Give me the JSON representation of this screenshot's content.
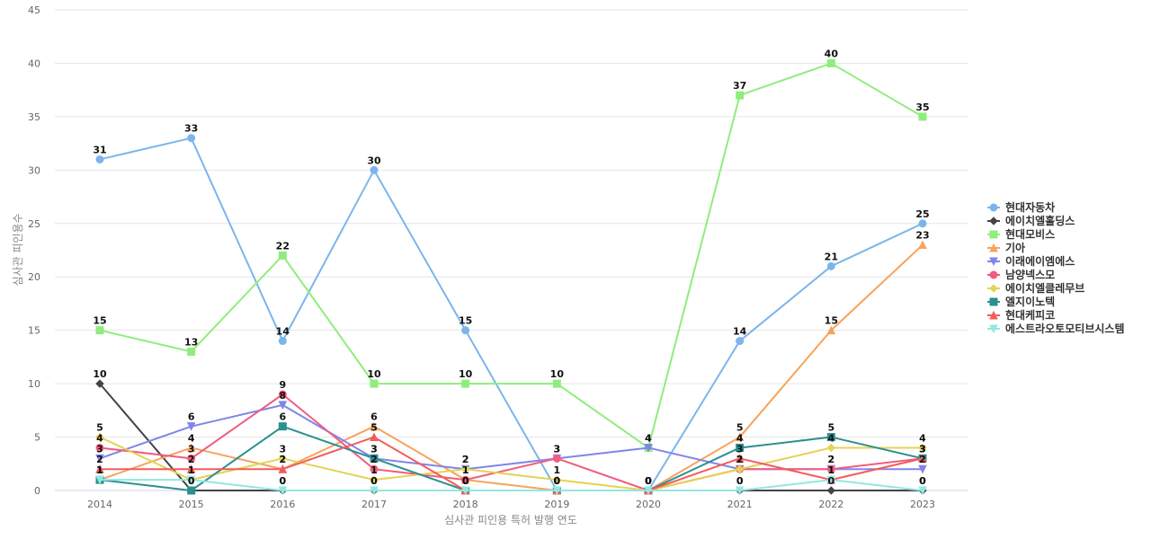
{
  "chart_data": {
    "type": "line",
    "xlabel": "심사관 피인용 특허 발행 연도",
    "ylabel": "심사관 피인용수",
    "ylim": [
      0,
      45
    ],
    "yticks": [
      0,
      5,
      10,
      15,
      20,
      25,
      30,
      35,
      40,
      45
    ],
    "x": [
      "2014",
      "2015",
      "2016",
      "2017",
      "2018",
      "2019",
      "2020",
      "2021",
      "2022",
      "2023"
    ],
    "grid": true,
    "legend_position": "right",
    "series": [
      {
        "name": "현대자동차",
        "values": [
          31,
          33,
          14,
          30,
          15,
          0,
          0,
          14,
          21,
          25
        ],
        "color": "#7cb5ec",
        "marker": "circle"
      },
      {
        "name": "에이치엘홀딩스",
        "values": [
          10,
          0,
          0,
          0,
          0,
          0,
          0,
          0,
          0,
          0
        ],
        "color": "#434348",
        "marker": "diamond"
      },
      {
        "name": "현대모비스",
        "values": [
          15,
          13,
          22,
          10,
          10,
          10,
          4,
          37,
          40,
          35
        ],
        "color": "#90ed7d",
        "marker": "square"
      },
      {
        "name": "기아",
        "values": [
          1,
          4,
          2,
          6,
          1,
          0,
          0,
          5,
          15,
          23
        ],
        "color": "#f7a35c",
        "marker": "triangle"
      },
      {
        "name": "이래에이엠에스",
        "values": [
          3,
          6,
          8,
          3,
          2,
          3,
          4,
          2,
          2,
          2
        ],
        "color": "#8085e9",
        "marker": "triangle-down"
      },
      {
        "name": "남양넥스모",
        "values": [
          4,
          3,
          9,
          2,
          1,
          3,
          0,
          2,
          2,
          3
        ],
        "color": "#f15c80",
        "marker": "circle"
      },
      {
        "name": "에이치엘클레무브",
        "values": [
          5,
          1,
          3,
          1,
          2,
          1,
          0,
          2,
          4,
          4
        ],
        "color": "#e4d354",
        "marker": "diamond"
      },
      {
        "name": "엘지이노텍",
        "values": [
          1,
          0,
          6,
          3,
          0,
          0,
          0,
          4,
          5,
          3
        ],
        "color": "#2b908f",
        "marker": "square"
      },
      {
        "name": "현대케피코",
        "values": [
          2,
          2,
          2,
          5,
          0,
          0,
          0,
          3,
          1,
          3
        ],
        "color": "#f45b5b",
        "marker": "triangle"
      },
      {
        "name": "에스트라오토모티브시스템",
        "values": [
          1,
          1,
          0,
          0,
          0,
          0,
          0,
          0,
          1,
          0
        ],
        "color": "#91e8e1",
        "marker": "triangle-down"
      }
    ]
  }
}
